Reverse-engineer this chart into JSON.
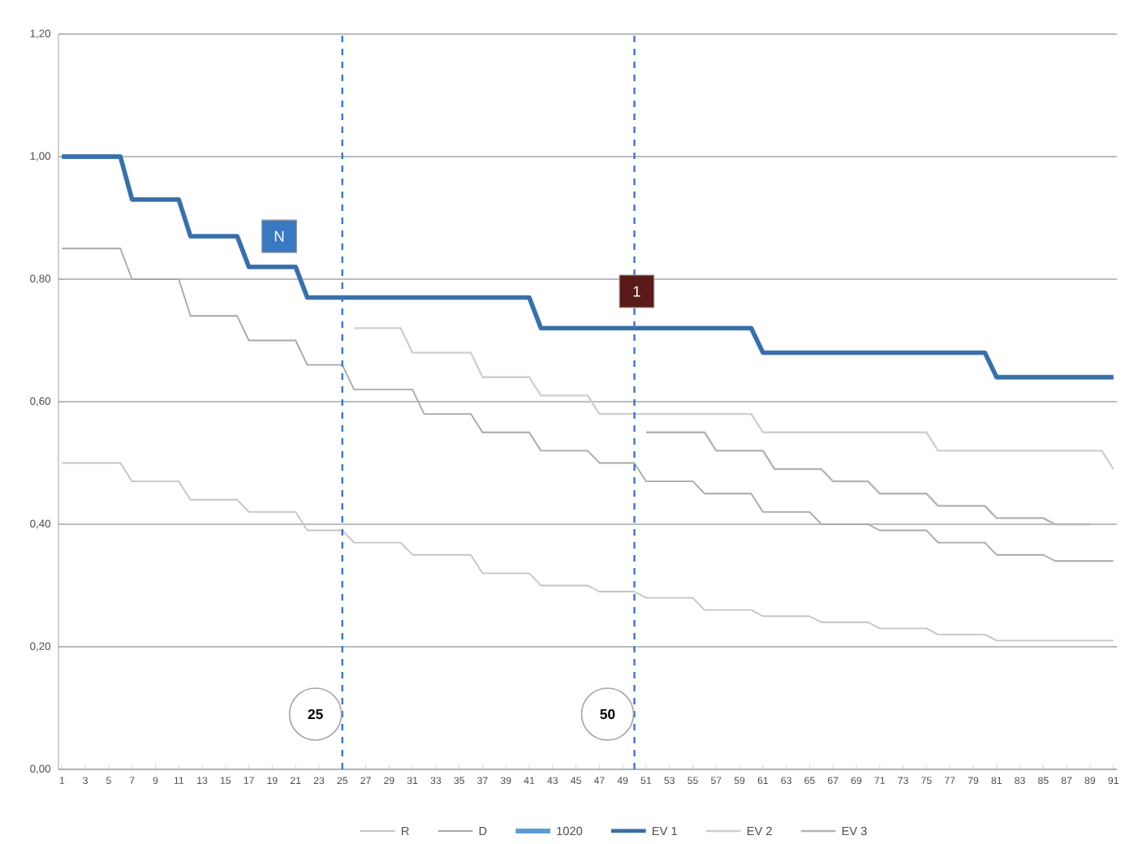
{
  "chart_data": {
    "type": "line",
    "legend": "bottom",
    "grid": "y",
    "xlim": [
      0.7,
      91.3
    ],
    "xticks": [
      1,
      3,
      5,
      7,
      9,
      11,
      13,
      15,
      17,
      19,
      21,
      23,
      25,
      27,
      29,
      31,
      33,
      35,
      37,
      39,
      41,
      43,
      45,
      47,
      49,
      51,
      53,
      55,
      57,
      59,
      61,
      63,
      65,
      67,
      69,
      71,
      73,
      75,
      77,
      79,
      81,
      83,
      85,
      87,
      89,
      91
    ],
    "ylim": [
      0,
      1.2
    ],
    "yticks": [
      {
        "value": 0,
        "label": "0,00"
      },
      {
        "value": 0.2,
        "label": "0,20"
      },
      {
        "value": 0.4,
        "label": "0,40"
      },
      {
        "value": 0.6,
        "label": "0,60"
      },
      {
        "value": 0.8,
        "label": "0,80"
      },
      {
        "value": 1.0,
        "label": "1,00"
      },
      {
        "value": 1.2,
        "label": "1,20"
      }
    ],
    "series": [
      {
        "name": "R",
        "color": "#c4c4c4",
        "x": [
          1,
          6,
          7,
          11,
          12,
          16,
          17,
          21,
          22,
          25,
          26,
          30,
          31,
          36,
          37,
          41,
          42,
          46,
          47,
          50,
          51,
          55,
          56,
          60,
          61,
          65,
          66,
          70,
          71,
          75,
          76,
          80,
          81,
          91
        ],
        "values": [
          0.5,
          0.5,
          0.47,
          0.47,
          0.44,
          0.44,
          0.42,
          0.42,
          0.39,
          0.39,
          0.37,
          0.37,
          0.35,
          0.35,
          0.32,
          0.32,
          0.3,
          0.3,
          0.29,
          0.29,
          0.28,
          0.28,
          0.26,
          0.26,
          0.25,
          0.25,
          0.24,
          0.24,
          0.23,
          0.23,
          0.22,
          0.22,
          0.21,
          0.21
        ]
      },
      {
        "name": "D",
        "color": "#a8a8a8",
        "x": [
          1,
          6,
          7,
          11,
          12,
          16,
          17,
          21,
          22,
          25,
          26,
          31,
          32,
          36,
          37,
          41,
          42,
          46,
          47,
          50,
          51,
          55,
          56,
          60,
          61,
          65,
          66,
          70,
          71,
          75,
          76,
          80,
          81,
          85,
          86,
          91
        ],
        "values": [
          0.85,
          0.85,
          0.8,
          0.8,
          0.74,
          0.74,
          0.7,
          0.7,
          0.66,
          0.66,
          0.62,
          0.62,
          0.58,
          0.58,
          0.55,
          0.55,
          0.52,
          0.52,
          0.5,
          0.5,
          0.47,
          0.47,
          0.45,
          0.45,
          0.42,
          0.42,
          0.4,
          0.4,
          0.39,
          0.39,
          0.37,
          0.37,
          0.35,
          0.35,
          0.34,
          0.34
        ]
      },
      {
        "name": "1020",
        "color": "#5b9bd5",
        "x": [
          1,
          6,
          7,
          11,
          12,
          16,
          17,
          21,
          22,
          41,
          42,
          60,
          61,
          80,
          81,
          91
        ],
        "values": [
          1.0,
          1.0,
          0.93,
          0.93,
          0.87,
          0.87,
          0.82,
          0.82,
          0.77,
          0.77,
          0.72,
          0.72,
          0.68,
          0.68,
          0.64,
          0.64
        ]
      },
      {
        "name": "EV 1",
        "color": "#3a6ea5",
        "x": [
          1,
          6,
          7,
          11,
          12,
          16,
          17,
          21,
          22,
          41,
          42,
          60,
          61,
          80,
          81,
          91
        ],
        "values": [
          1.0,
          1.0,
          0.93,
          0.93,
          0.87,
          0.87,
          0.82,
          0.82,
          0.77,
          0.77,
          0.72,
          0.72,
          0.68,
          0.68,
          0.64,
          0.64
        ]
      },
      {
        "name": "EV 2",
        "color": "#cfcfcf",
        "x": [
          26,
          30,
          31,
          36,
          37,
          41,
          42,
          46,
          47,
          60,
          61,
          75,
          76,
          90,
          91
        ],
        "values": [
          0.72,
          0.72,
          0.68,
          0.68,
          0.64,
          0.64,
          0.61,
          0.61,
          0.58,
          0.58,
          0.55,
          0.55,
          0.52,
          0.52,
          0.49
        ]
      },
      {
        "name": "EV 3",
        "color": "#b4b4b4",
        "x": [
          51,
          56,
          57,
          61,
          62,
          66,
          67,
          70,
          71,
          75,
          76,
          80,
          81,
          85,
          86,
          89
        ],
        "values": [
          0.55,
          0.55,
          0.52,
          0.52,
          0.49,
          0.49,
          0.47,
          0.47,
          0.45,
          0.45,
          0.43,
          0.43,
          0.41,
          0.41,
          0.4,
          0.4
        ]
      }
    ],
    "ref_lines": [
      {
        "axis": "x",
        "value": 25,
        "label": "25",
        "color": "#3a78c2",
        "line_style": "dashed"
      },
      {
        "axis": "x",
        "value": 50,
        "label": "50",
        "color": "#3a78c2",
        "line_style": "dashed"
      }
    ],
    "annotations": [
      {
        "text": "N",
        "x": 19.6,
        "y": 0.87
      },
      {
        "text": "1",
        "x": 50.2,
        "y": 0.78
      }
    ]
  }
}
